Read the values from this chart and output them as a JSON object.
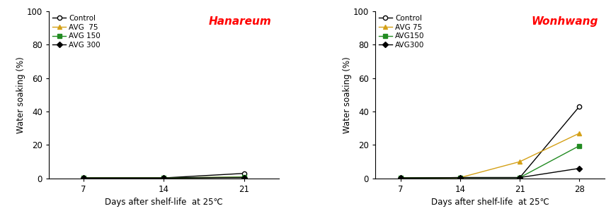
{
  "hanareum": {
    "days": [
      7,
      14,
      21
    ],
    "series": [
      {
        "label": "Control",
        "color": "#000000",
        "marker": "o",
        "mfc": "white",
        "mec": "#000000",
        "values": [
          0.3,
          0.3,
          3.0
        ]
      },
      {
        "label": "AVG  75",
        "color": "#d4a017",
        "marker": "^",
        "mfc": "#d4a017",
        "mec": "#d4a017",
        "values": [
          0.3,
          0.3,
          0.8
        ]
      },
      {
        "label": "AVG 150",
        "color": "#228B22",
        "marker": "s",
        "mfc": "#228B22",
        "mec": "#228B22",
        "values": [
          0.3,
          0.3,
          0.8
        ]
      },
      {
        "label": "AVG 300",
        "color": "#000000",
        "marker": "D",
        "mfc": "#000000",
        "mec": "#000000",
        "values": [
          0.3,
          0.3,
          0.5
        ]
      }
    ],
    "title": "Hanareum",
    "xlabel": "Days after shelf-life  at 25℃",
    "ylabel": "Water soaking (%)",
    "ylim": [
      0,
      100
    ],
    "yticks": [
      0,
      20,
      40,
      60,
      80,
      100
    ],
    "xticks": [
      7,
      14,
      21
    ],
    "xlim": [
      4,
      24
    ]
  },
  "wonhwang": {
    "days": [
      7,
      14,
      21,
      28
    ],
    "series": [
      {
        "label": "Control",
        "color": "#000000",
        "marker": "o",
        "mfc": "white",
        "mec": "#000000",
        "values": [
          0.3,
          0.5,
          0.5,
          43.0
        ]
      },
      {
        "label": "AVG 75",
        "color": "#d4a017",
        "marker": "^",
        "mfc": "#d4a017",
        "mec": "#d4a017",
        "values": [
          0.3,
          0.5,
          10.0,
          27.0
        ]
      },
      {
        "label": "AVG150",
        "color": "#228B22",
        "marker": "s",
        "mfc": "#228B22",
        "mec": "#228B22",
        "values": [
          0.3,
          0.5,
          0.5,
          19.5
        ]
      },
      {
        "label": "AVG300",
        "color": "#000000",
        "marker": "D",
        "mfc": "#000000",
        "mec": "#000000",
        "values": [
          0.3,
          0.5,
          0.5,
          6.0
        ]
      }
    ],
    "title": "Wonhwang",
    "xlabel": "Days after shelf-life  at 25℃",
    "ylabel": "Water soaking (%)",
    "ylim": [
      0,
      100
    ],
    "yticks": [
      0,
      20,
      40,
      60,
      80,
      100
    ],
    "xticks": [
      7,
      14,
      21,
      28
    ],
    "xlim": [
      4,
      31
    ]
  }
}
